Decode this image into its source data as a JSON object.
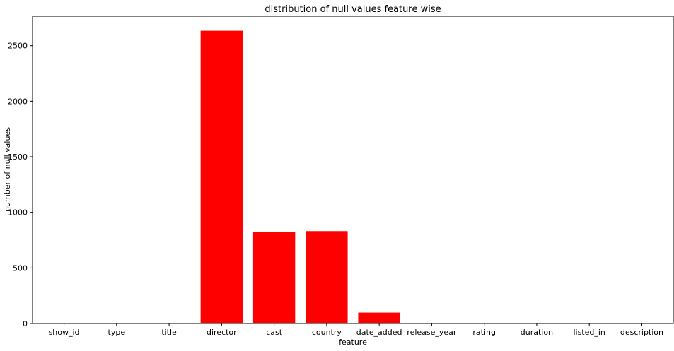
{
  "chart_data": {
    "type": "bar",
    "title": "distribution of null values feature wise",
    "xlabel": "feature",
    "ylabel": "number of null values",
    "categories": [
      "show_id",
      "type",
      "title",
      "director",
      "cast",
      "country",
      "date_added",
      "release_year",
      "rating",
      "duration",
      "listed_in",
      "description"
    ],
    "values": [
      0,
      0,
      0,
      2634,
      825,
      831,
      98,
      0,
      4,
      3,
      0,
      0
    ],
    "ylim": [
      0,
      2765
    ],
    "yticks": [
      0,
      500,
      1000,
      1500,
      2000,
      2500
    ],
    "bar_color": "#ff0000",
    "grid": false,
    "legend": "none"
  }
}
